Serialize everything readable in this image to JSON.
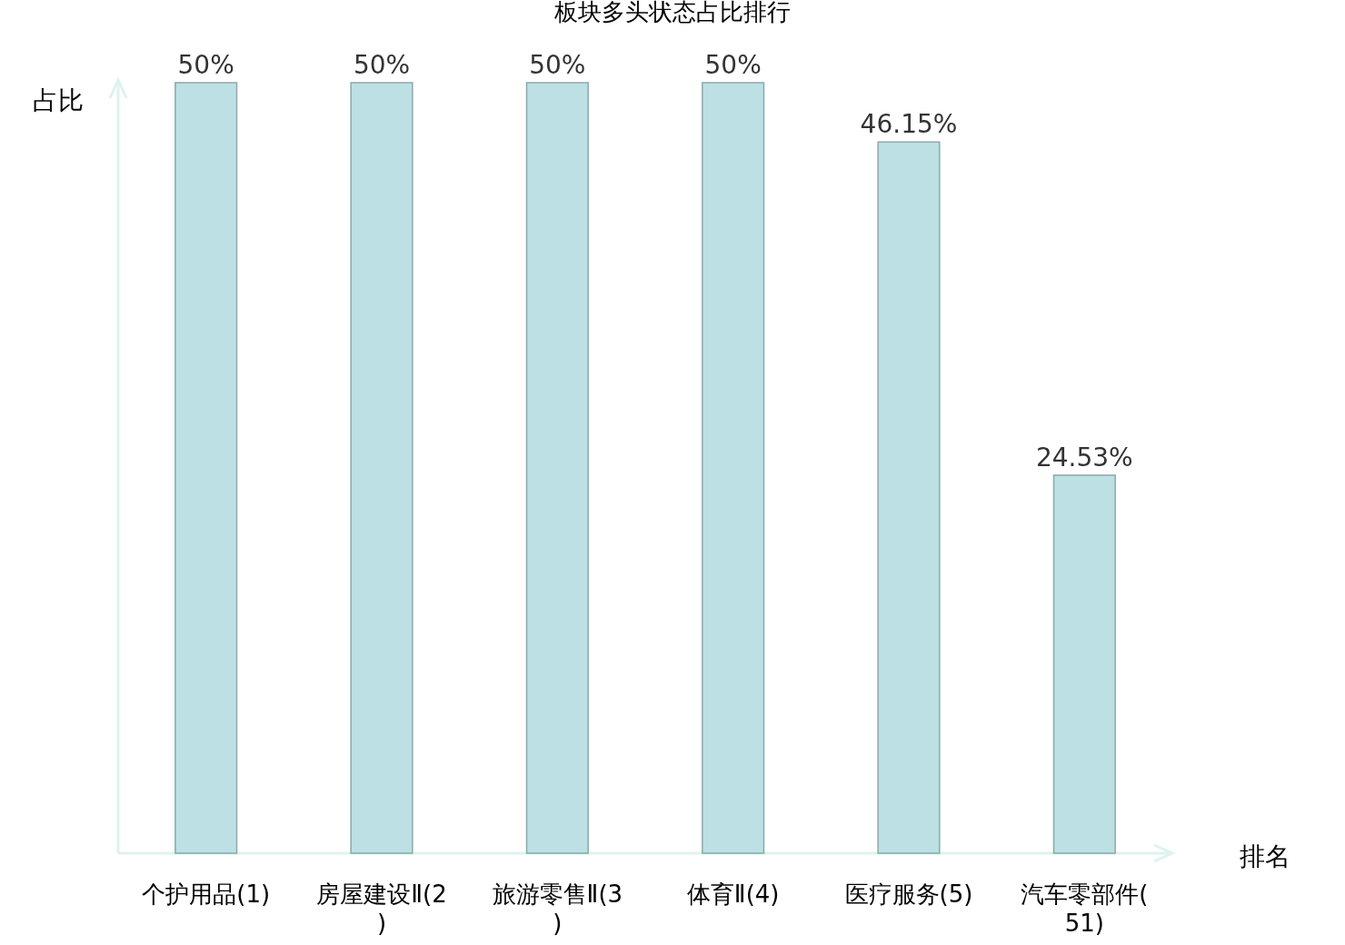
{
  "chart_data": {
    "type": "bar",
    "title": "板块多头状态占比排行",
    "xlabel": "排名",
    "ylabel": "占比",
    "categories": [
      "个护用品(1)",
      "房屋建设Ⅱ(2)",
      "旅游零售Ⅱ(3)",
      "体育Ⅱ(4)",
      "医疗服务(5)",
      "汽车零部件(51)"
    ],
    "series": [
      {
        "color": "#bce0e3",
        "values": [
          50,
          50,
          50,
          50,
          46.15,
          24.53
        ],
        "value_labels": [
          "50%",
          "50%",
          "50%",
          "50%",
          "46.15%",
          "24.53%"
        ]
      }
    ],
    "ylim": [
      0,
      50
    ]
  }
}
